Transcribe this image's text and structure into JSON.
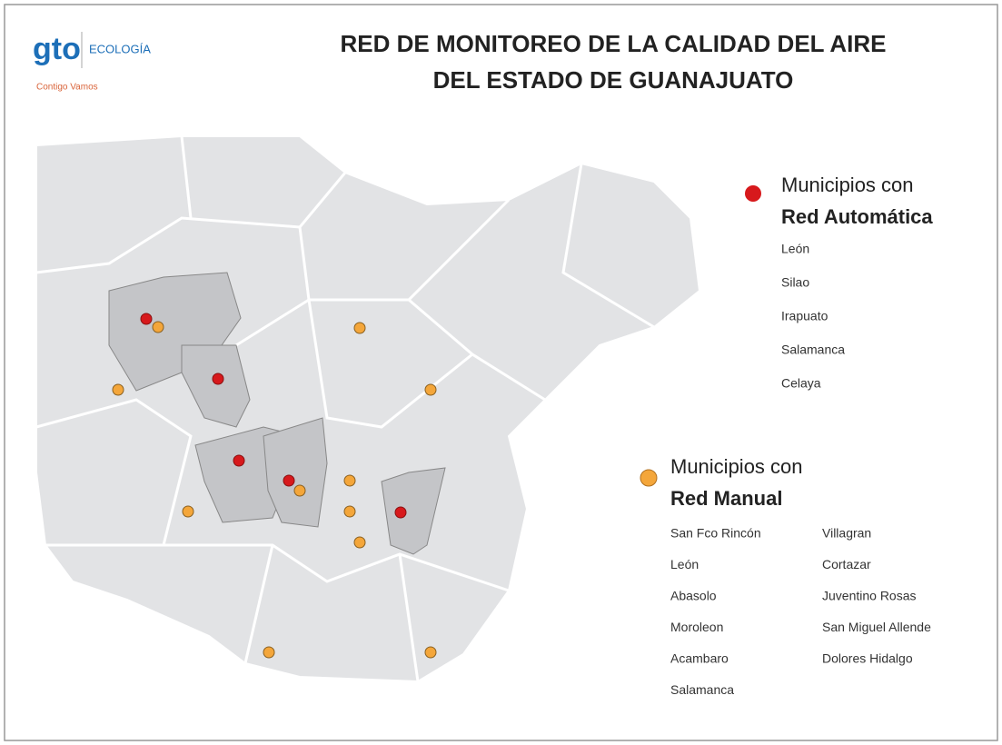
{
  "logo": {
    "mark": "gto",
    "name": "ECOLOGÍA",
    "slogan": "Contigo Vamos"
  },
  "title": [
    "RED DE MONITOREO DE LA CALIDAD DEL AIRE",
    "DEL ESTADO DE GUANAJUATO"
  ],
  "legend": [
    {
      "heading": [
        "Municipios con",
        "Red Automática"
      ],
      "items": [
        "León",
        "Silao",
        "Irapuato",
        "Salamanca",
        "Celaya"
      ]
    },
    {
      "heading": [
        "Municipios con",
        "Red Manual"
      ],
      "columns": [
        [
          "San Fco Rincón",
          "León",
          "Abasolo",
          "Moroleon",
          "Acambaro",
          "Salamanca"
        ],
        [
          "Villagran",
          "Cortazar",
          "Juventino Rosas",
          "San Miguel Allende",
          "Dolores Hidalgo"
        ]
      ]
    }
  ]
}
